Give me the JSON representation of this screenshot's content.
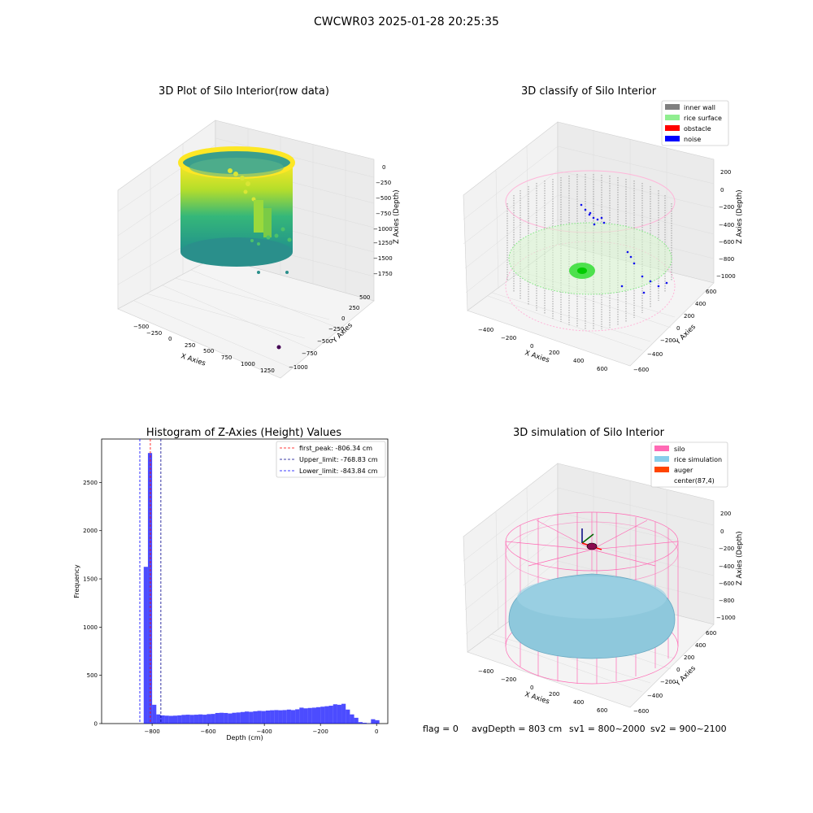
{
  "figure_title": "CWCWR03 2025-01-28 20:25:35",
  "status_line": {
    "flag": "flag = 0",
    "avg_depth": "avgDepth = 803 cm",
    "sv1": "sv1 = 800~2000",
    "sv2": "sv2 = 900~2100"
  },
  "chart_data": [
    {
      "type": "scatter3d",
      "title": "3D Plot of Silo Interior(row data)",
      "xlabel": "X Axies",
      "ylabel": "Y Axies",
      "zlabel": "Z Axies (Depth)",
      "x_ticks": [
        "−500",
        "−250",
        "0",
        "250",
        "500",
        "750",
        "1000",
        "1250"
      ],
      "y_ticks": [
        "−1000",
        "−750",
        "−500",
        "−250",
        "0",
        "250",
        "500"
      ],
      "z_ticks": [
        "0",
        "−250",
        "−500",
        "−750",
        "−1000",
        "−1250",
        "−1500",
        "−1750"
      ],
      "xlim": [
        -600,
        1400
      ],
      "ylim": [
        -1050,
        600
      ],
      "zlim": [
        -1800,
        50
      ],
      "colormap": "viridis"
    },
    {
      "type": "scatter3d",
      "title": "3D classify of Silo Interior",
      "xlabel": "X Axies",
      "ylabel": "Y Axies",
      "zlabel": "Z Axies (Depth)",
      "x_ticks": [
        "−400",
        "−200",
        "0",
        "200",
        "400",
        "600"
      ],
      "y_ticks": [
        "−600",
        "−400",
        "−200",
        "0",
        "200",
        "400",
        "600"
      ],
      "z_ticks": [
        "200",
        "0",
        "−200",
        "−400",
        "−600",
        "−800",
        "−1000"
      ],
      "legend_position": "top-right",
      "legend": [
        {
          "label": "inner wall",
          "color": "#808080"
        },
        {
          "label": "rice surface",
          "color": "#90ee90"
        },
        {
          "label": "obstacle",
          "color": "#ff0000"
        },
        {
          "label": "noise",
          "color": "#0000ff"
        }
      ]
    },
    {
      "type": "bar",
      "title": "Histogram of Z-Axies (Height) Values",
      "xlabel": "Depth (cm)",
      "ylabel": "Frequency",
      "xlim": [
        -980,
        40
      ],
      "ylim": [
        0,
        2950
      ],
      "x_ticks": [
        -800,
        -600,
        -400,
        -200,
        0
      ],
      "y_ticks": [
        0,
        500,
        1000,
        1500,
        2000,
        2500
      ],
      "bar_color": "#0000ff",
      "bin_width": 15,
      "bins": [
        {
          "x": -830,
          "value": 1625
        },
        {
          "x": -815,
          "value": 2805
        },
        {
          "x": -800,
          "value": 195
        },
        {
          "x": -785,
          "value": 95
        },
        {
          "x": -770,
          "value": 85
        },
        {
          "x": -755,
          "value": 82
        },
        {
          "x": -740,
          "value": 80
        },
        {
          "x": -725,
          "value": 82
        },
        {
          "x": -710,
          "value": 85
        },
        {
          "x": -695,
          "value": 90
        },
        {
          "x": -680,
          "value": 92
        },
        {
          "x": -665,
          "value": 90
        },
        {
          "x": -650,
          "value": 92
        },
        {
          "x": -635,
          "value": 95
        },
        {
          "x": -620,
          "value": 92
        },
        {
          "x": -605,
          "value": 98
        },
        {
          "x": -590,
          "value": 100
        },
        {
          "x": -575,
          "value": 110
        },
        {
          "x": -560,
          "value": 112
        },
        {
          "x": -545,
          "value": 110
        },
        {
          "x": -530,
          "value": 105
        },
        {
          "x": -515,
          "value": 112
        },
        {
          "x": -500,
          "value": 115
        },
        {
          "x": -485,
          "value": 120
        },
        {
          "x": -470,
          "value": 125
        },
        {
          "x": -455,
          "value": 122
        },
        {
          "x": -440,
          "value": 128
        },
        {
          "x": -425,
          "value": 132
        },
        {
          "x": -410,
          "value": 130
        },
        {
          "x": -395,
          "value": 135
        },
        {
          "x": -380,
          "value": 138
        },
        {
          "x": -365,
          "value": 140
        },
        {
          "x": -350,
          "value": 138
        },
        {
          "x": -335,
          "value": 140
        },
        {
          "x": -320,
          "value": 145
        },
        {
          "x": -305,
          "value": 140
        },
        {
          "x": -290,
          "value": 148
        },
        {
          "x": -275,
          "value": 165
        },
        {
          "x": -260,
          "value": 158
        },
        {
          "x": -245,
          "value": 162
        },
        {
          "x": -230,
          "value": 165
        },
        {
          "x": -215,
          "value": 170
        },
        {
          "x": -200,
          "value": 175
        },
        {
          "x": -185,
          "value": 180
        },
        {
          "x": -170,
          "value": 185
        },
        {
          "x": -155,
          "value": 200
        },
        {
          "x": -140,
          "value": 195
        },
        {
          "x": -125,
          "value": 205
        },
        {
          "x": -110,
          "value": 145
        },
        {
          "x": -95,
          "value": 95
        },
        {
          "x": -80,
          "value": 60
        },
        {
          "x": -65,
          "value": 15
        },
        {
          "x": -50,
          "value": 8
        },
        {
          "x": -35,
          "value": 3
        },
        {
          "x": -20,
          "value": 45
        },
        {
          "x": -5,
          "value": 35
        }
      ],
      "vlines": [
        {
          "label": "first_peak: -806.34 cm",
          "x": -806.34,
          "color": "#ff0000"
        },
        {
          "label": "Upper_limit: -768.83 cm",
          "x": -768.83,
          "color": "#00008b"
        },
        {
          "label": "Lower_limit: -843.84 cm",
          "x": -843.84,
          "color": "#0000ff"
        }
      ],
      "legend_position": "top-right"
    },
    {
      "type": "surface3d",
      "title": "3D simulation of Silo Interior",
      "xlabel": "X Axies",
      "ylabel": "Y Axies",
      "zlabel": "Z Axies (Depth)",
      "x_ticks": [
        "−400",
        "−200",
        "0",
        "200",
        "400",
        "600"
      ],
      "y_ticks": [
        "−600",
        "−400",
        "−200",
        "0",
        "200",
        "400",
        "600"
      ],
      "z_ticks": [
        "200",
        "0",
        "−200",
        "−400",
        "−600",
        "−800",
        "−1000"
      ],
      "legend_position": "top-right",
      "legend": [
        {
          "label": "silo",
          "color": "#ff69b4"
        },
        {
          "label": "rice simulation",
          "color": "#87ceeb"
        },
        {
          "label": "auger",
          "color": "#ff4500"
        },
        {
          "label": "center(87,4)",
          "color": "#ffffff"
        }
      ]
    }
  ]
}
